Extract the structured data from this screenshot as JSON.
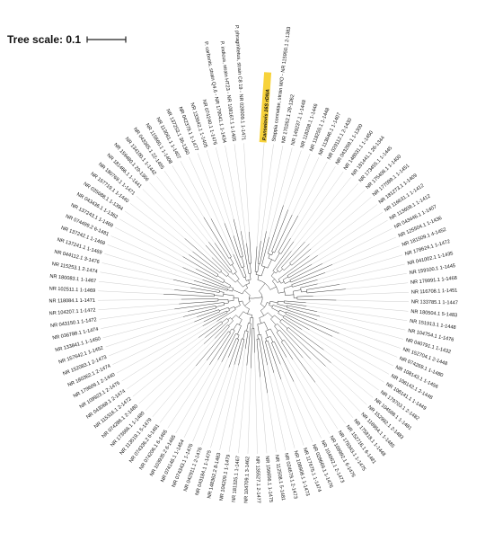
{
  "scale": {
    "label": "Tree scale: 0.1"
  },
  "highlight_color": "#f7d23a",
  "tree": {
    "type": "circular-phylogenetic-tree",
    "highlighted_leaf": "P.anseiovis 16S rDNA",
    "leaves": [
      "P.anseiovis 16S rDNA",
      "Stappia connatae, strain M/O - NR 115950.1 2-1383",
      "NR 170262.1 29-1362",
      "NR 149237.1 1-1448",
      "NR 118208.1 1-1446",
      "NR 118255.1 1-1448",
      "NR 113646.1 1-1407",
      "NR 029112.1 2-1430",
      "NR 043269.1 1-1300",
      "NR 148031.1 1-1450",
      "NR 181441.1 26-1344",
      "NR 173455.1 1-1445",
      "NR 175406.1 1-1400",
      "NR 177099.1 1-1451",
      "NR 181273.1 1-1409",
      "NR 116631.1 1-1412",
      "NR 113609.1 1-1412",
      "NR 043446.1 1-1407",
      "NR 125504.1 1-1436",
      "NR 181509.1 4-1452",
      "NR 178624.1 1-1472",
      "NR 041002.1 1-1435",
      "NR 159100.1 1-1445",
      "NR 179991.1 1-1468",
      "NR 116708.1 1-1451",
      "NR 133785.1 1-1447",
      "NR 180504.1 5-1483",
      "NR 151913.1 1-1448",
      "NR 104754.1 1-1476",
      "NR 040791.1 1-1432",
      "NR 152704.1 2-1448",
      "NR 074269.1 1-1480",
      "NR 108143.1 1-1456",
      "NR 108142.1 2-1448",
      "NR 108141.1 1-1449",
      "NR 179703.1 2-1482",
      "NR 104588.1 1-1481",
      "NR 152992.1 2-1483",
      "NR 118954.1 1-1485",
      "NR 175818.1 1-1448",
      "NR 152716.1 6-1481",
      "NR 178343.1 1-1475",
      "NR 109992.1 6-1476",
      "NR 104062.1 2-1473",
      "NR 028669.1 1-1476",
      "NR 117675.1 1-1474",
      "NR 108908.1 1-1473",
      "NR 024679.1 2-1473",
      "NR 112508.1 5-1481",
      "NR 156656.1 1-1475",
      "NR 135527.1 2-1477",
      "NR 104709.1 3-1462",
      "NR 181325.1 1-1467",
      "NR 104209.1 1-1479",
      "NR 148362.2 8-1483",
      "NR 043184.1 1-1475",
      "NR 042911.1 2-1476",
      "NR 074343.1 1-1476",
      "NR 074146.1 1-1454",
      "NR 103935.2 6-1465",
      "NR 074206.1 6-1465",
      "NR 074336.2 6-1481",
      "NR 113519.1 5-1479",
      "NR 173666.1 1-1480",
      "NR 074286.1 2-1480",
      "NR 115316.1 2-1472",
      "NR 043068.1 2-1474",
      "NR 109923.1 2-1475",
      "NR 179609.1 2-1440",
      "NR 180362.1 2-1474",
      "NR 152083.1 2-1473",
      "NR 157642.1 1-1452",
      "NR 133841.1 1-1450",
      "NR 036788.1 1-1474",
      "NR 043150.1 1-1472",
      "NR 104207.1 1-1472",
      "NR 118084.1 1-1471",
      "NR 102511.1 1-1469",
      "NR 180083.1 1-1467",
      "NR 115253.1 2-1474",
      "NR 044112.1 3-1476",
      "NR 137241.1 1-1469",
      "NR 137242.1 1-1469",
      "NR 074499.2 6-1481",
      "NR 137243.1 1-1469",
      "NR 043436.1 1-1362",
      "NR 025688.1 1-1394",
      "NR 157719.1 1-1440",
      "NR 180769.1 1-1471",
      "NR 181466.1 1-1441",
      "NR 159480.1 29-1366",
      "NR 134100.1 1-1442",
      "NR 043365.1 22-1455",
      "NR 115660.1 1-1408",
      "NR 113061.1 1-1407",
      "NR 137253.1 36-1360",
      "NR 042379.1 1-1477",
      "NR 133642.1 1-1405",
      "NR 074240.1 1-1476",
      "P. carbonis, strain Q4.6 - NR 179041.1 1-1434",
      "P. indicus, strain HT23 - NR 108167.1 1-1405",
      "P. phragmitetus, strain C8 19 - NR 028009.1 1-1471"
    ]
  }
}
